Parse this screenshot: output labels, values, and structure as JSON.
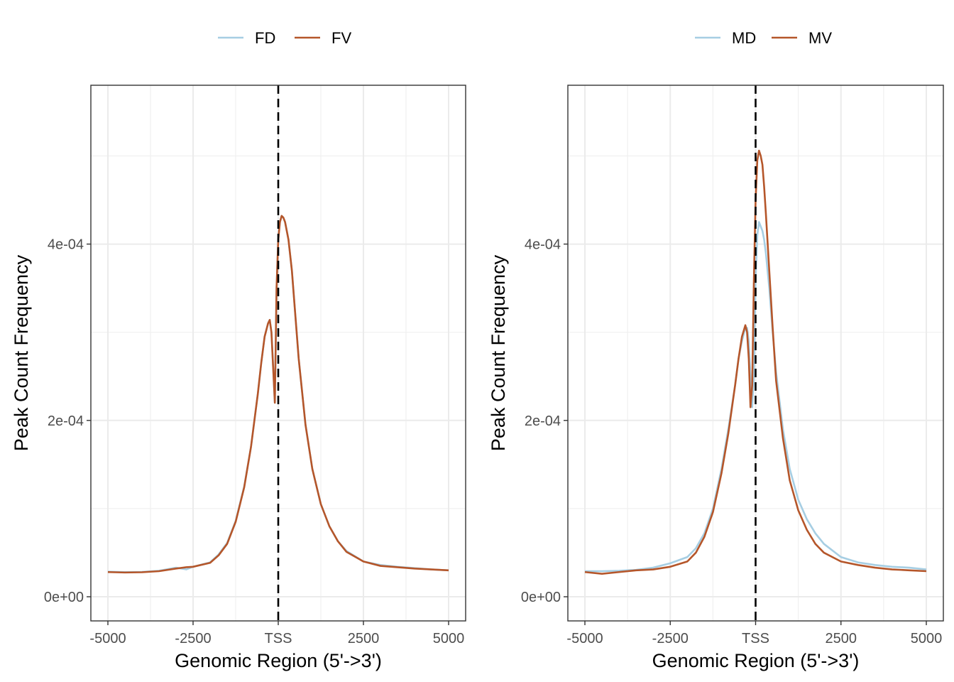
{
  "chart_data": [
    {
      "type": "line",
      "xlabel": "Genomic Region (5'->3')",
      "ylabel": "Peak Count Frequency",
      "xlim": [
        -5000,
        5000
      ],
      "ylim": [
        0,
        0.00056
      ],
      "x_ticks": [
        {
          "value": -5000,
          "label": "-5000"
        },
        {
          "value": -2500,
          "label": "-2500"
        },
        {
          "value": 0,
          "label": "TSS"
        },
        {
          "value": 2500,
          "label": "2500"
        },
        {
          "value": 5000,
          "label": "5000"
        }
      ],
      "y_ticks": [
        {
          "value": 0,
          "label": "0e+00"
        },
        {
          "value": 0.0002,
          "label": "2e-04"
        },
        {
          "value": 0.0004,
          "label": "4e-04"
        }
      ],
      "grid": true,
      "vline": {
        "x": 0,
        "style": "dashed"
      },
      "legend_position": "top",
      "series": [
        {
          "name": "FD",
          "color": "#a6cee3",
          "x": [
            -5000,
            -4500,
            -4000,
            -3500,
            -3000,
            -2700,
            -2500,
            -2000,
            -1750,
            -1500,
            -1250,
            -1000,
            -800,
            -600,
            -500,
            -400,
            -300,
            -250,
            -200,
            -150,
            -100,
            -50,
            0,
            50,
            100,
            150,
            200,
            300,
            400,
            500,
            600,
            800,
            1000,
            1250,
            1500,
            1750,
            2000,
            2500,
            3000,
            3500,
            4000,
            4500,
            5000
          ],
          "y": [
            2.85e-05,
            2.8e-05,
            2.82e-05,
            2.95e-05,
            3.3e-05,
            3.1e-05,
            3.4e-05,
            3.9e-05,
            4.8e-05,
            6.1e-05,
            8.6e-05,
            0.000125,
            0.00017,
            0.00023,
            0.000265,
            0.000295,
            0.00031,
            0.000314,
            0.0003,
            0.00026,
            0.00022,
            0.00035,
            0.000405,
            0.000425,
            0.000432,
            0.00043,
            0.000425,
            0.000405,
            0.00037,
            0.00032,
            0.00027,
            0.000195,
            0.000145,
            0.000105,
            8e-05,
            6.3e-05,
            5.2e-05,
            4e-05,
            3.6e-05,
            3.4e-05,
            3.25e-05,
            3.1e-05,
            3e-05
          ]
        },
        {
          "name": "FV",
          "color": "#b5562a",
          "x": [
            -5000,
            -4500,
            -4000,
            -3500,
            -3000,
            -2700,
            -2500,
            -2000,
            -1750,
            -1500,
            -1250,
            -1000,
            -800,
            -600,
            -500,
            -400,
            -300,
            -250,
            -200,
            -150,
            -100,
            -50,
            0,
            50,
            100,
            150,
            200,
            300,
            400,
            500,
            600,
            800,
            1000,
            1250,
            1500,
            1750,
            2000,
            2500,
            3000,
            3500,
            4000,
            4500,
            5000
          ],
          "y": [
            2.8e-05,
            2.75e-05,
            2.78e-05,
            2.9e-05,
            3.2e-05,
            3.35e-05,
            3.4e-05,
            3.85e-05,
            4.7e-05,
            6e-05,
            8.5e-05,
            0.000124,
            0.00017,
            0.00023,
            0.000265,
            0.000295,
            0.00031,
            0.000314,
            0.0003,
            0.00026,
            0.00022,
            0.00035,
            0.000405,
            0.000425,
            0.000432,
            0.00043,
            0.000425,
            0.000405,
            0.00037,
            0.00032,
            0.00027,
            0.000195,
            0.000145,
            0.000105,
            8e-05,
            6.3e-05,
            5.1e-05,
            4e-05,
            3.5e-05,
            3.35e-05,
            3.2e-05,
            3.1e-05,
            3e-05
          ]
        }
      ]
    },
    {
      "type": "line",
      "xlabel": "Genomic Region (5'->3')",
      "ylabel": "Peak Count Frequency",
      "xlim": [
        -5000,
        5000
      ],
      "ylim": [
        0,
        0.00056
      ],
      "x_ticks": [
        {
          "value": -5000,
          "label": "-5000"
        },
        {
          "value": -2500,
          "label": "-2500"
        },
        {
          "value": 0,
          "label": "TSS"
        },
        {
          "value": 2500,
          "label": "2500"
        },
        {
          "value": 5000,
          "label": "5000"
        }
      ],
      "y_ticks": [
        {
          "value": 0,
          "label": "0e+00"
        },
        {
          "value": 0.0002,
          "label": "2e-04"
        },
        {
          "value": 0.0004,
          "label": "4e-04"
        }
      ],
      "grid": true,
      "vline": {
        "x": 0,
        "style": "dashed"
      },
      "legend_position": "top",
      "series": [
        {
          "name": "MD",
          "color": "#a6cee3",
          "x": [
            -5000,
            -4500,
            -4000,
            -3500,
            -3000,
            -2500,
            -2000,
            -1750,
            -1500,
            -1250,
            -1000,
            -800,
            -600,
            -500,
            -400,
            -300,
            -250,
            -200,
            -150,
            -100,
            -50,
            0,
            50,
            100,
            150,
            200,
            250,
            300,
            400,
            500,
            600,
            800,
            1000,
            1250,
            1500,
            1750,
            2000,
            2500,
            3000,
            3500,
            4000,
            4500,
            5000
          ],
          "y": [
            2.9e-05,
            2.9e-05,
            2.95e-05,
            3.05e-05,
            3.3e-05,
            3.8e-05,
            4.5e-05,
            5.5e-05,
            7.2e-05,
            0.0001,
            0.000145,
            0.00019,
            0.00024,
            0.00027,
            0.00029,
            0.000305,
            0.000305,
            0.00029,
            0.00025,
            0.000215,
            0.00025,
            0.00036,
            0.00041,
            0.000425,
            0.00042,
            0.000415,
            0.000405,
            0.00039,
            0.00035,
            0.0003,
            0.000255,
            0.00019,
            0.000145,
            0.00011,
            8.8e-05,
            7.2e-05,
            6e-05,
            4.5e-05,
            3.9e-05,
            3.6e-05,
            3.4e-05,
            3.3e-05,
            3.1e-05
          ]
        },
        {
          "name": "MV",
          "color": "#b5562a",
          "x": [
            -5000,
            -4500,
            -4000,
            -3500,
            -3000,
            -2500,
            -2000,
            -1750,
            -1500,
            -1250,
            -1000,
            -800,
            -600,
            -500,
            -400,
            -300,
            -250,
            -200,
            -150,
            -100,
            -50,
            0,
            50,
            100,
            150,
            200,
            250,
            300,
            400,
            500,
            600,
            800,
            1000,
            1250,
            1500,
            1750,
            2000,
            2500,
            3000,
            3500,
            4000,
            4500,
            5000
          ],
          "y": [
            2.8e-05,
            2.6e-05,
            2.8e-05,
            3e-05,
            3.1e-05,
            3.4e-05,
            4e-05,
            5e-05,
            6.8e-05,
            9.6e-05,
            0.00014,
            0.000185,
            0.00024,
            0.00027,
            0.000295,
            0.000308,
            0.0003,
            0.00027,
            0.000215,
            0.00024,
            0.00036,
            0.00045,
            0.000495,
            0.000506,
            0.0005,
            0.00049,
            0.000465,
            0.000435,
            0.00037,
            0.000305,
            0.000245,
            0.00018,
            0.000132,
            9.8e-05,
            7.6e-05,
            6e-05,
            5e-05,
            4e-05,
            3.6e-05,
            3.3e-05,
            3.1e-05,
            3e-05,
            2.9e-05
          ]
        }
      ]
    }
  ]
}
